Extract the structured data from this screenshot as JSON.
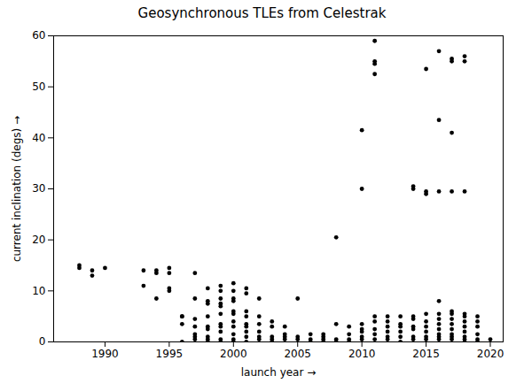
{
  "chart_data": {
    "type": "scatter",
    "title": "Geosynchronous TLEs from Celestrak",
    "xlabel": "launch year",
    "ylabel": "current inclination (degs)",
    "xlim": [
      1986,
      2021
    ],
    "ylim": [
      0,
      60
    ],
    "xticks": [
      1990,
      1995,
      2000,
      2005,
      2010,
      2015,
      2020
    ],
    "yticks": [
      0,
      10,
      20,
      30,
      40,
      50,
      60
    ],
    "color": "black",
    "x": [
      1988,
      1988,
      1989,
      1989,
      1990,
      1993,
      1993,
      1994,
      1994,
      1994,
      1995,
      1995,
      1995,
      1995,
      1996,
      1996,
      1996,
      1996,
      1997,
      1997,
      1997,
      1997,
      1997,
      1997,
      1997,
      1998,
      1998,
      1998,
      1998,
      1998,
      1998,
      1998,
      1998,
      1998,
      1999,
      1999,
      1999,
      1999,
      1999,
      1999,
      1999,
      1999,
      1999,
      1999,
      1999,
      2000,
      2000,
      2000,
      2000,
      2000,
      2000,
      2000,
      2000,
      2000,
      2000,
      2000,
      2001,
      2001,
      2001,
      2001,
      2001,
      2001,
      2001,
      2001,
      2001,
      2002,
      2002,
      2002,
      2002,
      2002,
      2002,
      2003,
      2003,
      2003,
      2003,
      2003,
      2004,
      2004,
      2004,
      2004,
      2005,
      2005,
      2005,
      2006,
      2006,
      2006,
      2007,
      2007,
      2007,
      2007,
      2008,
      2008,
      2008,
      2008,
      2009,
      2009,
      2009,
      2009,
      2010,
      2010,
      2010,
      2010,
      2010,
      2010,
      2010,
      2011,
      2011,
      2011,
      2011,
      2011,
      2011,
      2011,
      2011,
      2011,
      2012,
      2012,
      2012,
      2012,
      2012,
      2012,
      2013,
      2013,
      2013,
      2013,
      2013,
      2013,
      2014,
      2014,
      2014,
      2014,
      2014,
      2014,
      2014,
      2014,
      2015,
      2015,
      2015,
      2015,
      2015,
      2015,
      2015,
      2015,
      2015,
      2016,
      2016,
      2016,
      2016,
      2016,
      2016,
      2016,
      2016,
      2016,
      2016,
      2016,
      2017,
      2017,
      2017,
      2017,
      2017,
      2017,
      2017,
      2017,
      2017,
      2017,
      2017,
      2017,
      2018,
      2018,
      2018,
      2018,
      2018,
      2018,
      2018,
      2018,
      2018,
      2018,
      2018,
      2019,
      2019,
      2019,
      2019,
      2019,
      2019,
      2020
    ],
    "values": [
      15.0,
      14.5,
      13.0,
      14.0,
      14.5,
      11.0,
      14.0,
      8.5,
      13.5,
      14.0,
      10.0,
      10.5,
      13.5,
      14.5,
      5.0,
      5.0,
      3.5,
      0.0,
      13.5,
      8.5,
      4.5,
      3.0,
      1.5,
      1.0,
      0.5,
      10.5,
      8.0,
      7.5,
      5.0,
      3.0,
      2.5,
      1.0,
      0.5,
      0.0,
      11.0,
      10.0,
      8.5,
      7.5,
      7.0,
      5.5,
      3.5,
      3.0,
      2.0,
      0.5,
      0.0,
      11.5,
      10.0,
      8.5,
      8.0,
      6.0,
      5.5,
      4.0,
      3.0,
      1.5,
      0.5,
      0.0,
      10.5,
      9.5,
      6.0,
      5.0,
      3.5,
      3.0,
      2.0,
      1.0,
      0.0,
      8.5,
      5.0,
      3.5,
      2.0,
      1.0,
      0.5,
      4.0,
      3.0,
      1.0,
      0.5,
      0.0,
      3.0,
      1.5,
      1.0,
      0.5,
      8.5,
      1.0,
      0.5,
      1.5,
      0.5,
      0.0,
      1.5,
      1.0,
      0.5,
      0.0,
      20.5,
      3.5,
      0.5,
      0.0,
      3.0,
      1.5,
      0.5,
      0.0,
      41.5,
      30.0,
      3.5,
      2.5,
      2.0,
      1.0,
      0.5,
      59.0,
      55.0,
      54.5,
      52.5,
      5.0,
      4.0,
      2.5,
      1.5,
      0.5,
      5.0,
      4.0,
      3.0,
      2.0,
      1.0,
      0.5,
      5.0,
      3.5,
      3.0,
      2.0,
      1.0,
      0.0,
      30.5,
      30.0,
      5.0,
      4.5,
      3.0,
      2.5,
      1.0,
      0.5,
      53.5,
      29.5,
      29.0,
      5.5,
      4.0,
      3.0,
      2.0,
      1.0,
      0.5,
      57.0,
      43.5,
      29.5,
      8.0,
      5.5,
      4.5,
      3.5,
      2.5,
      1.5,
      1.0,
      0.5,
      55.5,
      55.0,
      41.0,
      29.5,
      6.0,
      5.5,
      4.5,
      3.5,
      2.5,
      1.5,
      1.0,
      0.5,
      56.0,
      55.0,
      29.5,
      5.5,
      5.0,
      4.0,
      3.0,
      2.0,
      1.0,
      0.5,
      0.0,
      5.0,
      4.0,
      3.0,
      1.5,
      0.5,
      0.0,
      0.5
    ]
  }
}
